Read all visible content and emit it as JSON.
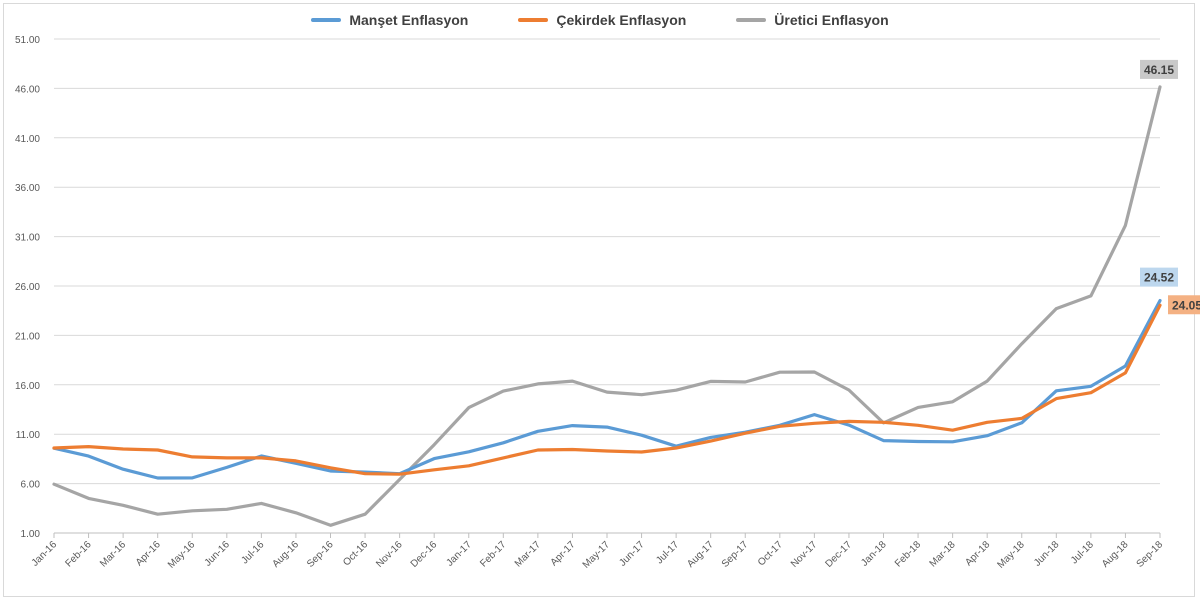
{
  "chart_data": {
    "type": "line",
    "categories": [
      "Jan-16",
      "Feb-16",
      "Mar-16",
      "Apr-16",
      "May-16",
      "Jun-16",
      "Jul-16",
      "Aug-16",
      "Sep-16",
      "Oct-16",
      "Nov-16",
      "Dec-16",
      "Jan-17",
      "Feb-17",
      "Mar-17",
      "Apr-17",
      "May-17",
      "Jun-17",
      "Jul-17",
      "Aug-17",
      "Sep-17",
      "Oct-17",
      "Nov-17",
      "Dec-17",
      "Jan-18",
      "Feb-18",
      "Mar-18",
      "Apr-18",
      "May-18",
      "Jun-18",
      "Jul-18",
      "Aug-18",
      "Sep-18"
    ],
    "y_ticks": [
      "1.00",
      "6.00",
      "11.00",
      "16.00",
      "21.00",
      "26.00",
      "31.00",
      "36.00",
      "41.00",
      "46.00",
      "51.00"
    ],
    "ylim": [
      1,
      51
    ],
    "grid": true,
    "legend_position": "top",
    "series": [
      {
        "name": "Manşet Enflasyon",
        "color": "#5b9bd5",
        "values": [
          9.58,
          8.78,
          7.46,
          6.57,
          6.58,
          7.64,
          8.79,
          8.05,
          7.28,
          7.16,
          7.0,
          8.53,
          9.22,
          10.13,
          11.29,
          11.87,
          11.72,
          10.9,
          9.79,
          10.68,
          11.2,
          11.9,
          12.98,
          11.92,
          10.35,
          10.26,
          10.23,
          10.85,
          12.15,
          15.39,
          15.85,
          17.9,
          24.52
        ],
        "end_label": "24.52",
        "label_bg": "#bdd7ee"
      },
      {
        "name": "Çekirdek Enflasyon",
        "color": "#ed7d31",
        "values": [
          9.6,
          9.75,
          9.5,
          9.4,
          8.7,
          8.6,
          8.6,
          8.3,
          7.6,
          7.0,
          6.95,
          7.4,
          7.8,
          8.6,
          9.4,
          9.45,
          9.3,
          9.2,
          9.6,
          10.3,
          11.1,
          11.8,
          12.1,
          12.3,
          12.2,
          11.9,
          11.4,
          12.2,
          12.6,
          14.6,
          15.2,
          17.2,
          24.05
        ],
        "end_label": "24.05",
        "label_bg": "#f4b183"
      },
      {
        "name": "Üretici Enflasyon",
        "color": "#a5a5a5",
        "values": [
          5.94,
          4.5,
          3.8,
          2.9,
          3.25,
          3.4,
          4.0,
          3.04,
          1.78,
          2.9,
          6.41,
          9.94,
          13.69,
          15.36,
          16.09,
          16.37,
          15.26,
          15.0,
          15.45,
          16.34,
          16.28,
          17.28,
          17.3,
          15.47,
          12.14,
          13.71,
          14.28,
          16.37,
          20.16,
          23.71,
          25.0,
          32.13,
          46.15
        ],
        "end_label": "46.15",
        "label_bg": "#c9c9c9"
      }
    ]
  }
}
